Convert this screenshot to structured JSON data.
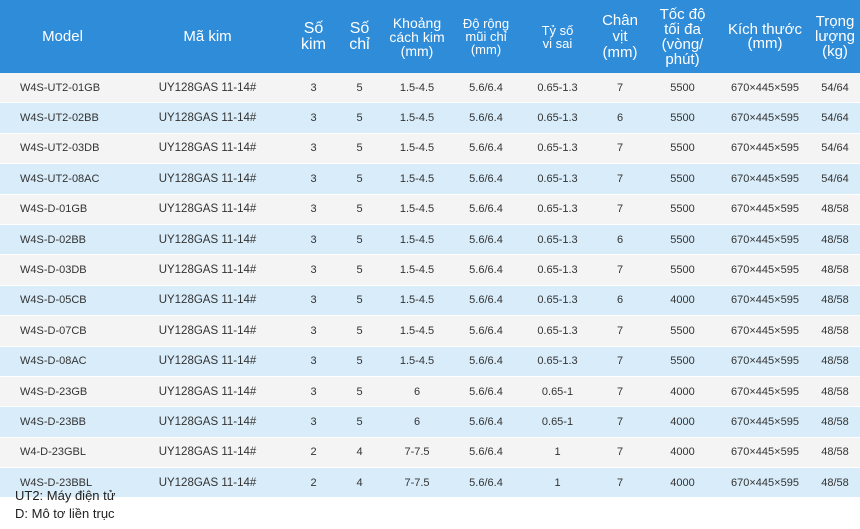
{
  "table": {
    "columns": [
      "Model",
      "Mã kim",
      "Số\nkim",
      "Số\nchỉ",
      "Khoảng\ncách kim\n(mm)",
      "Độ rộng\nmũi chỉ\n(mm)",
      "Tỷ số\nvi sai",
      "Chân\nvịt\n(mm)",
      "Tốc độ\ntối đa\n(vòng/\nphút)",
      "Kích thước\n(mm)",
      "Trọng\nlượng\n(kg)"
    ],
    "rows": [
      [
        "W4S-UT2-01GB",
        "UY128GAS 11-14#",
        "3",
        "5",
        "1.5-4.5",
        "5.6/6.4",
        "0.65-1.3",
        "7",
        "5500",
        "670×445×595",
        "54/64"
      ],
      [
        "W4S-UT2-02BB",
        "UY128GAS 11-14#",
        "3",
        "5",
        "1.5-4.5",
        "5.6/6.4",
        "0.65-1.3",
        "6",
        "5500",
        "670×445×595",
        "54/64"
      ],
      [
        "W4S-UT2-03DB",
        "UY128GAS 11-14#",
        "3",
        "5",
        "1.5-4.5",
        "5.6/6.4",
        "0.65-1.3",
        "7",
        "5500",
        "670×445×595",
        "54/64"
      ],
      [
        "W4S-UT2-08AC",
        "UY128GAS 11-14#",
        "3",
        "5",
        "1.5-4.5",
        "5.6/6.4",
        "0.65-1.3",
        "7",
        "5500",
        "670×445×595",
        "54/64"
      ],
      [
        "W4S-D-01GB",
        "UY128GAS 11-14#",
        "3",
        "5",
        "1.5-4.5",
        "5.6/6.4",
        "0.65-1.3",
        "7",
        "5500",
        "670×445×595",
        "48/58"
      ],
      [
        "W4S-D-02BB",
        "UY128GAS 11-14#",
        "3",
        "5",
        "1.5-4.5",
        "5.6/6.4",
        "0.65-1.3",
        "6",
        "5500",
        "670×445×595",
        "48/58"
      ],
      [
        "W4S-D-03DB",
        "UY128GAS 11-14#",
        "3",
        "5",
        "1.5-4.5",
        "5.6/6.4",
        "0.65-1.3",
        "7",
        "5500",
        "670×445×595",
        "48/58"
      ],
      [
        "W4S-D-05CB",
        "UY128GAS 11-14#",
        "3",
        "5",
        "1.5-4.5",
        "5.6/6.4",
        "0.65-1.3",
        "6",
        "4000",
        "670×445×595",
        "48/58"
      ],
      [
        "W4S-D-07CB",
        "UY128GAS 11-14#",
        "3",
        "5",
        "1.5-4.5",
        "5.6/6.4",
        "0.65-1.3",
        "7",
        "5500",
        "670×445×595",
        "48/58"
      ],
      [
        "W4S-D-08AC",
        "UY128GAS 11-14#",
        "3",
        "5",
        "1.5-4.5",
        "5.6/6.4",
        "0.65-1.3",
        "7",
        "5500",
        "670×445×595",
        "48/58"
      ],
      [
        "W4S-D-23GB",
        "UY128GAS 11-14#",
        "3",
        "5",
        "6",
        "5.6/6.4",
        "0.65-1",
        "7",
        "4000",
        "670×445×595",
        "48/58"
      ],
      [
        "W4S-D-23BB",
        "UY128GAS 11-14#",
        "3",
        "5",
        "6",
        "5.6/6.4",
        "0.65-1",
        "7",
        "4000",
        "670×445×595",
        "48/58"
      ],
      [
        "W4-D-23GBL",
        "UY128GAS 11-14#",
        "2",
        "4",
        "7-7.5",
        "5.6/6.4",
        "1",
        "7",
        "4000",
        "670×445×595",
        "48/58"
      ],
      [
        "W4S-D-23BBL",
        "UY128GAS 11-14#",
        "2",
        "4",
        "7-7.5",
        "5.6/6.4",
        "1",
        "7",
        "4000",
        "670×445×595",
        "48/58"
      ]
    ]
  },
  "notes": [
    "UT2: Máy điện tử",
    "D: Mô tơ liền trục"
  ],
  "colors": {
    "header_bg": "#2f8cd9",
    "header_text": "#ffffff",
    "row_odd": "#f4f4f4",
    "row_even": "#d8ecf9"
  }
}
